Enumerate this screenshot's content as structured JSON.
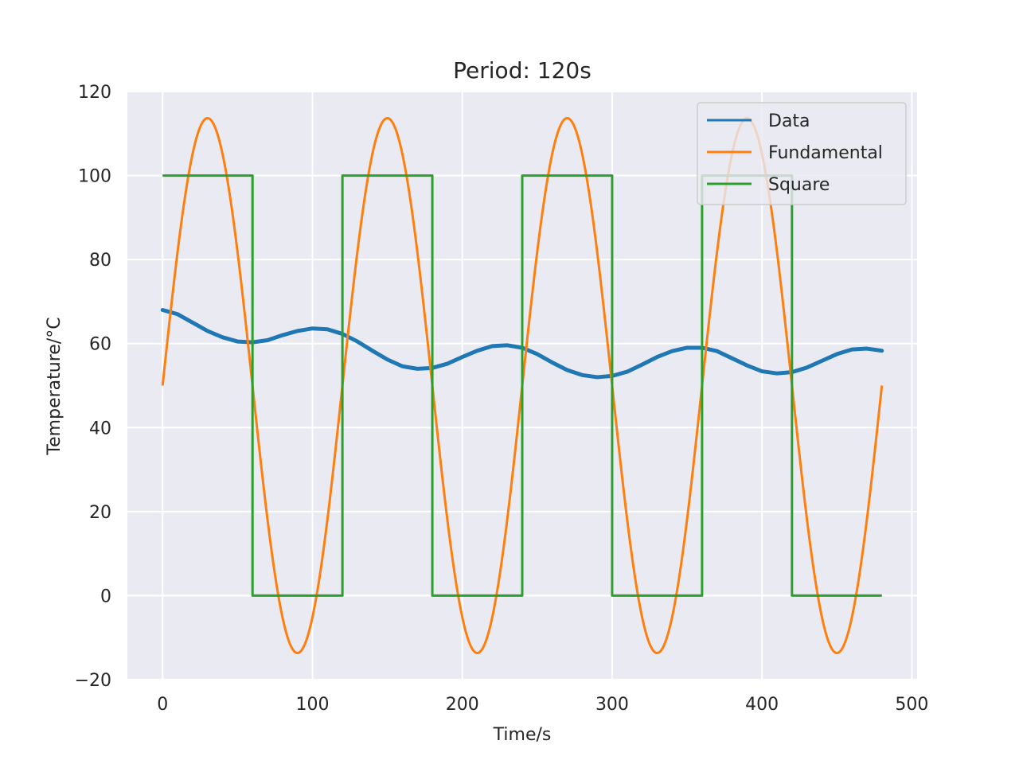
{
  "chart_data": {
    "type": "line",
    "title": "Period: 120s",
    "xlabel": "Time/s",
    "ylabel": "Temperature/°C",
    "xlim": [
      -23.5,
      503.5
    ],
    "ylim": [
      -20,
      120
    ],
    "x_ticks": [
      0,
      100,
      200,
      300,
      400,
      500
    ],
    "y_ticks": [
      -20,
      0,
      20,
      40,
      60,
      80,
      100,
      120
    ],
    "x_tick_labels": [
      "0",
      "100",
      "200",
      "300",
      "400",
      "500"
    ],
    "y_tick_labels": [
      "−20",
      "0",
      "20",
      "40",
      "60",
      "80",
      "100",
      "120"
    ],
    "grid": true,
    "legend_position": "top-right",
    "series": [
      {
        "name": "Data",
        "color": "#1f77b4",
        "x": [
          0,
          10,
          20,
          30,
          40,
          50,
          60,
          70,
          80,
          90,
          100,
          110,
          120,
          130,
          140,
          150,
          160,
          170,
          180,
          190,
          200,
          210,
          220,
          230,
          240,
          250,
          260,
          270,
          280,
          290,
          300,
          310,
          320,
          330,
          340,
          350,
          360,
          370,
          380,
          390,
          400,
          410,
          420,
          430,
          440,
          450,
          460,
          470,
          480
        ],
        "y": [
          68,
          67,
          65,
          63,
          61.5,
          60.5,
          60.3,
          60.8,
          62,
          63,
          63.6,
          63.4,
          62.3,
          60.5,
          58.3,
          56.2,
          54.6,
          54,
          54.2,
          55.2,
          56.8,
          58.3,
          59.4,
          59.6,
          59,
          57.5,
          55.5,
          53.7,
          52.5,
          52,
          52.3,
          53.3,
          55,
          56.8,
          58.2,
          59,
          59,
          58.2,
          56.5,
          54.8,
          53.4,
          52.9,
          53.2,
          54.3,
          55.9,
          57.5,
          58.6,
          58.8,
          58.3
        ]
      },
      {
        "name": "Fundamental",
        "color": "#ff7f0e",
        "function": "sine",
        "offset": 50,
        "amplitude": 63.66,
        "period": 120,
        "x_range": [
          0,
          480
        ]
      },
      {
        "name": "Square",
        "color": "#2ca02c",
        "x": [
          0,
          60,
          60,
          120,
          120,
          180,
          180,
          240,
          240,
          300,
          300,
          360,
          360,
          420,
          420,
          480
        ],
        "y": [
          100,
          100,
          0,
          0,
          100,
          100,
          0,
          0,
          100,
          100,
          0,
          0,
          100,
          100,
          0,
          0
        ]
      }
    ]
  }
}
